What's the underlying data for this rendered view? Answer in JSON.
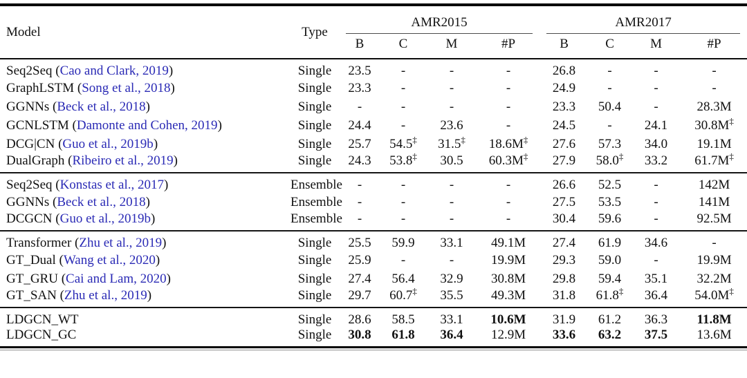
{
  "table": {
    "header": {
      "model": "Model",
      "type": "Type",
      "group_2015": "AMR2015",
      "group_2017": "AMR2017",
      "metrics": [
        "B",
        "C",
        "M",
        "#P"
      ]
    },
    "link_color": "#2a2ab5",
    "groups": [
      {
        "rows": [
          {
            "name": "Seq2Seq",
            "cite": "Cao and Clark, 2019",
            "type": "Single",
            "vals": [
              "23.5",
              "-",
              "-",
              "-",
              "26.8",
              "-",
              "-",
              "-"
            ],
            "bold": []
          },
          {
            "name": "GraphLSTM",
            "cite": "Song et al., 2018",
            "type": "Single",
            "vals": [
              "23.3",
              "-",
              "-",
              "-",
              "24.9",
              "-",
              "-",
              "-"
            ],
            "bold": []
          },
          {
            "name": "GGNNs",
            "cite": "Beck et al., 2018",
            "type": "Single",
            "vals": [
              "-",
              "-",
              "-",
              "-",
              "23.3",
              "50.4",
              "-",
              "28.3M"
            ],
            "bold": []
          },
          {
            "name": "GCNLSTM",
            "cite": "Damonte and Cohen, 2019",
            "type": "Single",
            "vals": [
              "24.4",
              "-",
              "23.6",
              "-",
              "24.5",
              "-",
              "24.1",
              "30.8M‡"
            ],
            "bold": []
          },
          {
            "name": "DCG|CN",
            "cite": "Guo et al., 2019b",
            "type": "Single",
            "vals": [
              "25.7",
              "54.5‡",
              "31.5‡",
              "18.6M‡",
              "27.6",
              "57.3",
              "34.0",
              "19.1M"
            ],
            "bold": []
          },
          {
            "name": "DualGraph",
            "cite": "Ribeiro et al., 2019",
            "type": "Single",
            "vals": [
              "24.3",
              "53.8‡",
              "30.5",
              "60.3M‡",
              "27.9",
              "58.0‡",
              "33.2",
              "61.7M‡"
            ],
            "bold": []
          }
        ]
      },
      {
        "rows": [
          {
            "name": "Seq2Seq",
            "cite": "Konstas et al., 2017",
            "type": "Ensemble",
            "vals": [
              "-",
              "-",
              "-",
              "-",
              "26.6",
              "52.5",
              "-",
              "142M"
            ],
            "bold": []
          },
          {
            "name": "GGNNs",
            "cite": "Beck et al., 2018",
            "type": "Ensemble",
            "vals": [
              "-",
              "-",
              "-",
              "-",
              "27.5",
              "53.5",
              "-",
              "141M"
            ],
            "bold": []
          },
          {
            "name": "DCGCN",
            "cite": "Guo et al., 2019b",
            "type": "Ensemble",
            "vals": [
              "-",
              "-",
              "-",
              "-",
              "30.4",
              "59.6",
              "-",
              "92.5M"
            ],
            "bold": []
          }
        ]
      },
      {
        "rows": [
          {
            "name": "Transformer",
            "cite": "Zhu et al., 2019",
            "type": "Single",
            "vals": [
              "25.5",
              "59.9",
              "33.1",
              "49.1M",
              "27.4",
              "61.9",
              "34.6",
              "-"
            ],
            "bold": []
          },
          {
            "name": "GT_Dual",
            "cite": "Wang et al., 2020",
            "type": "Single",
            "vals": [
              "25.9",
              "-",
              "-",
              "19.9M",
              "29.3",
              "59.0",
              "-",
              "19.9M"
            ],
            "bold": []
          },
          {
            "name": "GT_GRU",
            "cite": "Cai and Lam, 2020",
            "type": "Single",
            "vals": [
              "27.4",
              "56.4",
              "32.9",
              "30.8M",
              "29.8",
              "59.4",
              "35.1",
              "32.2M"
            ],
            "bold": []
          },
          {
            "name": "GT_SAN",
            "cite": "Zhu et al., 2019",
            "type": "Single",
            "vals": [
              "29.7",
              "60.7‡",
              "35.5",
              "49.3M",
              "31.8",
              "61.8‡",
              "36.4",
              "54.0M‡"
            ],
            "bold": []
          }
        ]
      },
      {
        "rows": [
          {
            "name": "LDGCN_WT",
            "cite": null,
            "type": "Single",
            "vals": [
              "28.6",
              "58.5",
              "33.1",
              "10.6M",
              "31.9",
              "61.2",
              "36.3",
              "11.8M"
            ],
            "bold": [
              3,
              7
            ]
          },
          {
            "name": "LDGCN_GC",
            "cite": null,
            "type": "Single",
            "vals": [
              "30.8",
              "61.8",
              "36.4",
              "12.9M",
              "33.6",
              "63.2",
              "37.5",
              "13.6M"
            ],
            "bold": [
              0,
              1,
              2,
              4,
              5,
              6
            ]
          }
        ]
      }
    ]
  }
}
